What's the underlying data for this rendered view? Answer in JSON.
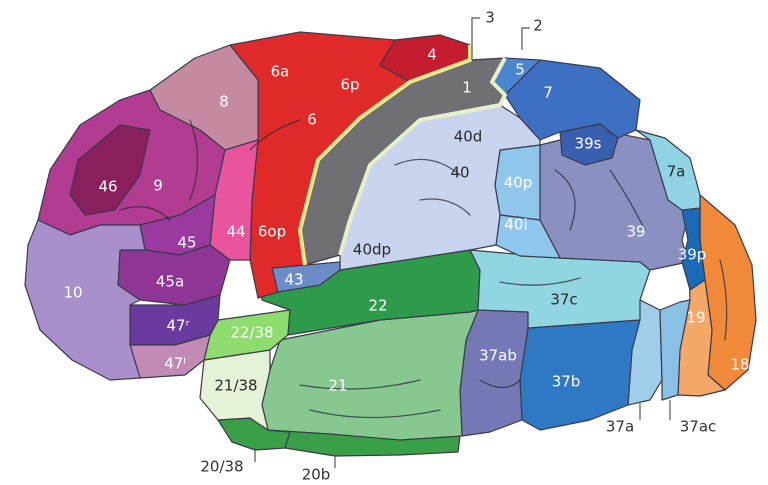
{
  "regions": [
    {
      "id": "4",
      "label": "4",
      "color": "#c41e2e"
    },
    {
      "id": "6a",
      "label": "6a",
      "color": "#e02a2a"
    },
    {
      "id": "6p",
      "label": "6p",
      "color": "#e02a2a"
    },
    {
      "id": "6",
      "label": "6",
      "color": "#e02a2a"
    },
    {
      "id": "6op",
      "label": "6op",
      "color": "#e02a2a"
    },
    {
      "id": "8",
      "label": "8",
      "color": "#c48aa2"
    },
    {
      "id": "9",
      "label": "9",
      "color": "#b23c92"
    },
    {
      "id": "46",
      "label": "46",
      "color": "#8a1f5e"
    },
    {
      "id": "10",
      "label": "10",
      "color": "#a990cc"
    },
    {
      "id": "45",
      "label": "45",
      "color": "#9a3aa0"
    },
    {
      "id": "45a",
      "label": "45a",
      "color": "#8f3596"
    },
    {
      "id": "44",
      "label": "44",
      "color": "#e8559c"
    },
    {
      "id": "47r",
      "label": "47ʳ",
      "color": "#6b3a9e"
    },
    {
      "id": "47l",
      "label": "47ˡ",
      "color": "#c08ab4"
    },
    {
      "id": "1",
      "label": "1",
      "color": "#6f6f74"
    },
    {
      "id": "5",
      "label": "5",
      "color": "#4a86d0"
    },
    {
      "id": "7",
      "label": "7",
      "color": "#3d6fc2"
    },
    {
      "id": "39s",
      "label": "39s",
      "color": "#3a5fae"
    },
    {
      "id": "7a",
      "label": "7a",
      "color": "#8fd3e4"
    },
    {
      "id": "40d",
      "label": "40d",
      "color": "#c8d4ee"
    },
    {
      "id": "40",
      "label": "40",
      "color": "#c8d4ee"
    },
    {
      "id": "40dp",
      "label": "40dp",
      "color": "#c8d4ee"
    },
    {
      "id": "40p",
      "label": "40p",
      "color": "#8ec6ec"
    },
    {
      "id": "40i",
      "label": "40i",
      "color": "#8ec6ec"
    },
    {
      "id": "39",
      "label": "39",
      "color": "#8a90c2"
    },
    {
      "id": "39p",
      "label": "39p",
      "color": "#1a6ab8"
    },
    {
      "id": "43",
      "label": "43",
      "color": "#6c8cc8"
    },
    {
      "id": "22",
      "label": "22",
      "color": "#2e9a4c"
    },
    {
      "id": "22-38",
      "label": "22/38",
      "color": "#8edc6e"
    },
    {
      "id": "21-38",
      "label": "21/38",
      "color": "#e6f2d8"
    },
    {
      "id": "21",
      "label": "21",
      "color": "#86c890"
    },
    {
      "id": "37ab",
      "label": "37ab",
      "color": "#7478b4"
    },
    {
      "id": "37c",
      "label": "37c",
      "color": "#8fd6e0"
    },
    {
      "id": "37b",
      "label": "37b",
      "color": "#2e78c4"
    },
    {
      "id": "19",
      "label": "19",
      "color": "#f4a868"
    },
    {
      "id": "18",
      "label": "18",
      "color": "#f08a3a"
    }
  ],
  "external_labels": [
    {
      "id": "3",
      "label": "3"
    },
    {
      "id": "2",
      "label": "2"
    },
    {
      "id": "20-38",
      "label": "20/38"
    },
    {
      "id": "20b",
      "label": "20b"
    },
    {
      "id": "37a",
      "label": "37a"
    },
    {
      "id": "37ac",
      "label": "37ac"
    }
  ],
  "colors": {
    "central_outline": "#f4ec8a",
    "postcentral_outline": "#e6f0c8",
    "sulcus": "#2c2c3a"
  }
}
